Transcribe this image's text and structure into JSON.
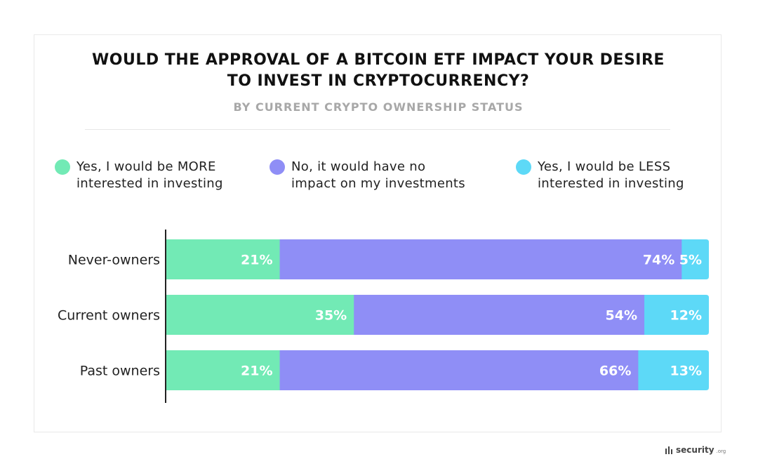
{
  "chart_data": {
    "type": "bar",
    "orientation": "horizontal",
    "stacked": true,
    "title_lines": [
      "WOULD THE APPROVAL OF A BITCOIN ETF IMPACT YOUR DESIRE",
      "TO INVEST IN CRYPTOCURRENCY?"
    ],
    "subtitle": "BY CURRENT CRYPTO OWNERSHIP STATUS",
    "categories": [
      "Never-owners",
      "Current owners",
      "Past owners"
    ],
    "series": [
      {
        "name_lines": [
          "Yes, I would be MORE",
          "interested in investing"
        ],
        "color": "#72eab5",
        "values": [
          21,
          35,
          21
        ]
      },
      {
        "name_lines": [
          "No, it would have no",
          "impact on my investments"
        ],
        "color": "#8f8ef6",
        "values": [
          74,
          54,
          66
        ]
      },
      {
        "name_lines": [
          "Yes, I would be LESS",
          "interested in investing"
        ],
        "color": "#5dd9f7",
        "values": [
          5,
          12,
          13
        ]
      }
    ],
    "xlim": [
      0,
      100
    ],
    "label_suffix": "%",
    "legend_position": "top"
  },
  "brand": {
    "name": "security",
    "suffix": ".org"
  }
}
